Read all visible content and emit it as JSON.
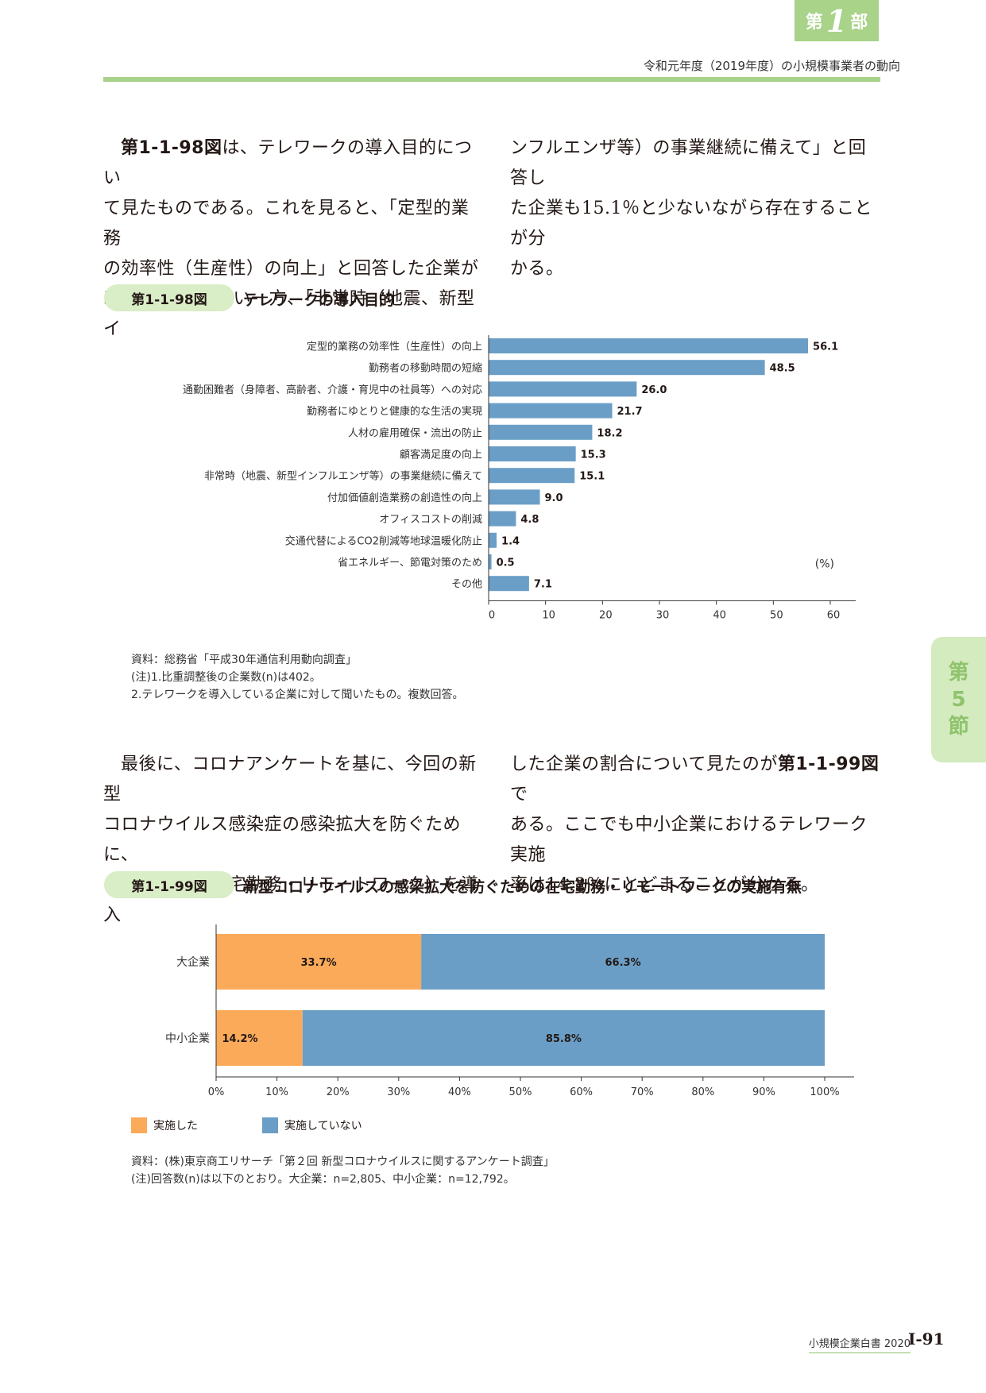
{
  "header": {
    "part_tab_pre": "第",
    "part_tab_num": "1",
    "part_tab_post": "部",
    "title": "令和元年度（2019年度）の小規模事業者の動向"
  },
  "paragraph1": {
    "col1": {
      "lead_bold": "第1-1-98図",
      "lines": [
        "は、テレワークの導入目的につい",
        "て見たものである。これを見ると、「定型的業務",
        "の効率性（生産性）の向上」と回答した企業が",
        "56.1％と最も多い一方、「非常時（地震、新型イ"
      ]
    },
    "col2": {
      "lines": [
        "ンフルエンザ等）の事業継続に備えて」と回答し",
        "た企業も15.1％と少ないながら存在することが分",
        "かる。"
      ]
    }
  },
  "figure98": {
    "label": "第1-1-98図",
    "title": "テレワークの導入目的",
    "unit": "(%)",
    "notes": [
      "資料：総務省「平成30年通信利用動向調査」",
      "(注)1.比重調整後の企業数(n)は402。",
      "2.テレワークを導入している企業に対して聞いたもの。複数回答。"
    ]
  },
  "paragraph2": {
    "col1": {
      "lines": [
        "最後に、コロナアンケートを基に、今回の新型",
        "コロナウイルス感染症の感染拡大を防ぐために、",
        "テレワーク（在宅勤務・リモートワーク）を導入"
      ]
    },
    "col2": {
      "line1_pre": "した企業の割合について見たのが",
      "line1_bold": "第1-1-99図",
      "line1_post": "で",
      "lines": [
        "ある。ここでも中小企業におけるテレワーク実施",
        "率は14.2％にとどまることが分かる。"
      ]
    }
  },
  "figure99": {
    "label": "第1-1-99図",
    "title": "新型コロナウイルスの感染拡大を防ぐための在宅勤務・リモートワークの実施有無",
    "notes": [
      "資料：(株)東京商工リサーチ「第２回 新型コロナウイルスに関するアンケート調査」",
      "(注)回答数(n)は以下のとおり。大企業：n=2,805、中小企業：n=12,792。"
    ]
  },
  "side_tab": {
    "chars": [
      "第",
      "5",
      "節"
    ]
  },
  "footer": {
    "book": "小規模企業白書  2020",
    "page": "Ⅰ-91"
  },
  "colors": {
    "bar_blue": "#6a9ec6",
    "orange": "#fbaa5a",
    "green_header": "#a8d389"
  },
  "chart_data": [
    {
      "type": "bar",
      "orientation": "horizontal",
      "categories": [
        "定型的業務の効率性（生産性）の向上",
        "勤務者の移動時間の短縮",
        "通勤困難者（身障者、高齢者、介護・育児中の社員等）への対応",
        "勤務者にゆとりと健康的な生活の実現",
        "人材の雇用確保・流出の防止",
        "顧客満足度の向上",
        "非常時（地震、新型インフルエンザ等）の事業継続に備えて",
        "付加価値創造業務の創造性の向上",
        "オフィスコストの削減",
        "交通代替によるCO2削減等地球温暖化防止",
        "省エネルギー、節電対策のため",
        "その他"
      ],
      "values": [
        56.1,
        48.5,
        26.0,
        21.7,
        18.2,
        15.3,
        15.1,
        9.0,
        4.8,
        1.4,
        0.5,
        7.1
      ],
      "value_labels": [
        "56.1",
        "48.5",
        "26.0",
        "21.7",
        "18.2",
        "15.3",
        "15.1",
        "9.0",
        "4.8",
        "1.4",
        "0.5",
        "7.1"
      ],
      "xlim": [
        0,
        60
      ],
      "xticks": [
        "0",
        "10",
        "20",
        "30",
        "40",
        "50",
        "60"
      ],
      "unit": "(%)",
      "grid": false
    },
    {
      "type": "bar",
      "orientation": "horizontal",
      "stacked": true,
      "categories": [
        "大企業",
        "中小企業"
      ],
      "series": [
        {
          "name": "実施した",
          "values": [
            33.7,
            14.2
          ],
          "labels": [
            "33.7%",
            "14.2%"
          ],
          "color": "#fbaa5a"
        },
        {
          "name": "実施していない",
          "values": [
            66.3,
            85.8
          ],
          "labels": [
            "66.3%",
            "85.8%"
          ],
          "color": "#6a9ec6"
        }
      ],
      "xlim": [
        0,
        100
      ],
      "xticks": [
        "0%",
        "10%",
        "20%",
        "30%",
        "40%",
        "50%",
        "60%",
        "70%",
        "80%",
        "90%",
        "100%"
      ],
      "legend": "bottom-left",
      "grid": false
    }
  ]
}
